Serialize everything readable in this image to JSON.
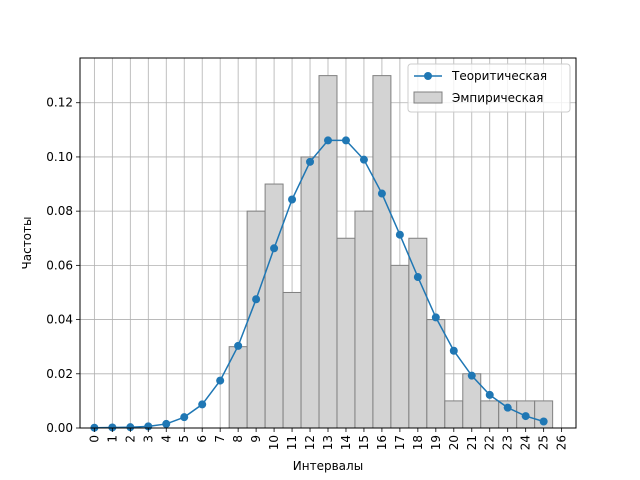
{
  "chart_data": {
    "type": "bar+line",
    "xlabel": "Интервалы",
    "ylabel": "Частоты",
    "xlim": [
      -0.8,
      26.8
    ],
    "ylim": [
      0,
      0.1365
    ],
    "x_ticks": [
      0,
      1,
      2,
      3,
      4,
      5,
      6,
      7,
      8,
      9,
      10,
      11,
      12,
      13,
      14,
      15,
      16,
      17,
      18,
      19,
      20,
      21,
      22,
      23,
      24,
      25,
      26
    ],
    "y_ticks": [
      0.0,
      0.02,
      0.04,
      0.06,
      0.08,
      0.1,
      0.12
    ],
    "y_tick_labels": [
      "0.00",
      "0.02",
      "0.04",
      "0.06",
      "0.08",
      "0.10",
      "0.12"
    ],
    "grid": true,
    "legend_position": "upper-right",
    "line_series": {
      "name": "Теоритическая",
      "color": "#1f77b4",
      "x": [
        0,
        1,
        2,
        3,
        4,
        5,
        6,
        7,
        8,
        9,
        10,
        11,
        12,
        13,
        14,
        15,
        16,
        17,
        18,
        19,
        20,
        21,
        22,
        23,
        24,
        25
      ],
      "y": [
        0.0001,
        0.0002,
        0.0003,
        0.0006,
        0.0015,
        0.004,
        0.0087,
        0.0175,
        0.0303,
        0.0475,
        0.0663,
        0.0843,
        0.0982,
        0.1061,
        0.1061,
        0.099,
        0.0865,
        0.0713,
        0.0557,
        0.0408,
        0.0285,
        0.0193,
        0.0122,
        0.0075,
        0.0044,
        0.0024
      ]
    },
    "bar_series": {
      "name": "Эмпирическая",
      "color": "#d3d3d3",
      "edge_color": "#808080",
      "x": [
        8,
        9,
        10,
        11,
        12,
        13,
        14,
        15,
        16,
        17,
        18,
        19,
        20,
        21,
        22,
        23,
        24,
        25
      ],
      "y": [
        0.03,
        0.08,
        0.09,
        0.05,
        0.1,
        0.13,
        0.07,
        0.08,
        0.13,
        0.06,
        0.07,
        0.04,
        0.01,
        0.02,
        0.01,
        0.01,
        0.01,
        0.01
      ]
    }
  }
}
